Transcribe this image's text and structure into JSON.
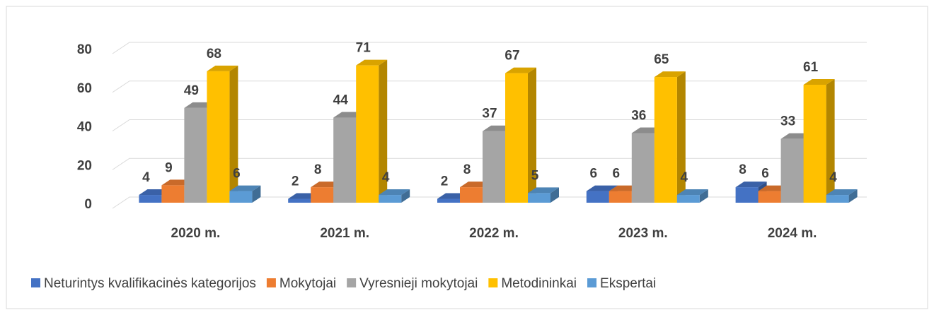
{
  "chart_data": {
    "type": "bar3d",
    "categories": [
      "2020 m.",
      "2021 m.",
      "2022 m.",
      "2023 m.",
      "2024 m."
    ],
    "series": [
      {
        "name": "Neturintys kvalifikacinės kategorijos",
        "color": "#4472c4",
        "values": [
          4,
          2,
          2,
          6,
          8
        ]
      },
      {
        "name": "Mokytojai",
        "color": "#ed7d31",
        "values": [
          9,
          8,
          8,
          6,
          6
        ]
      },
      {
        "name": "Vyresnieji mokytojai",
        "color": "#a5a5a5",
        "values": [
          49,
          44,
          37,
          36,
          33
        ]
      },
      {
        "name": "Metodininkai",
        "color": "#ffc000",
        "values": [
          68,
          71,
          67,
          65,
          61
        ]
      },
      {
        "name": "Ekspertai",
        "color": "#5b9bd5",
        "values": [
          6,
          4,
          5,
          4,
          4
        ]
      }
    ],
    "ylim": [
      0,
      80
    ],
    "yticks": [
      0,
      20,
      40,
      60,
      80
    ],
    "grid": true,
    "legend": "bottom"
  }
}
